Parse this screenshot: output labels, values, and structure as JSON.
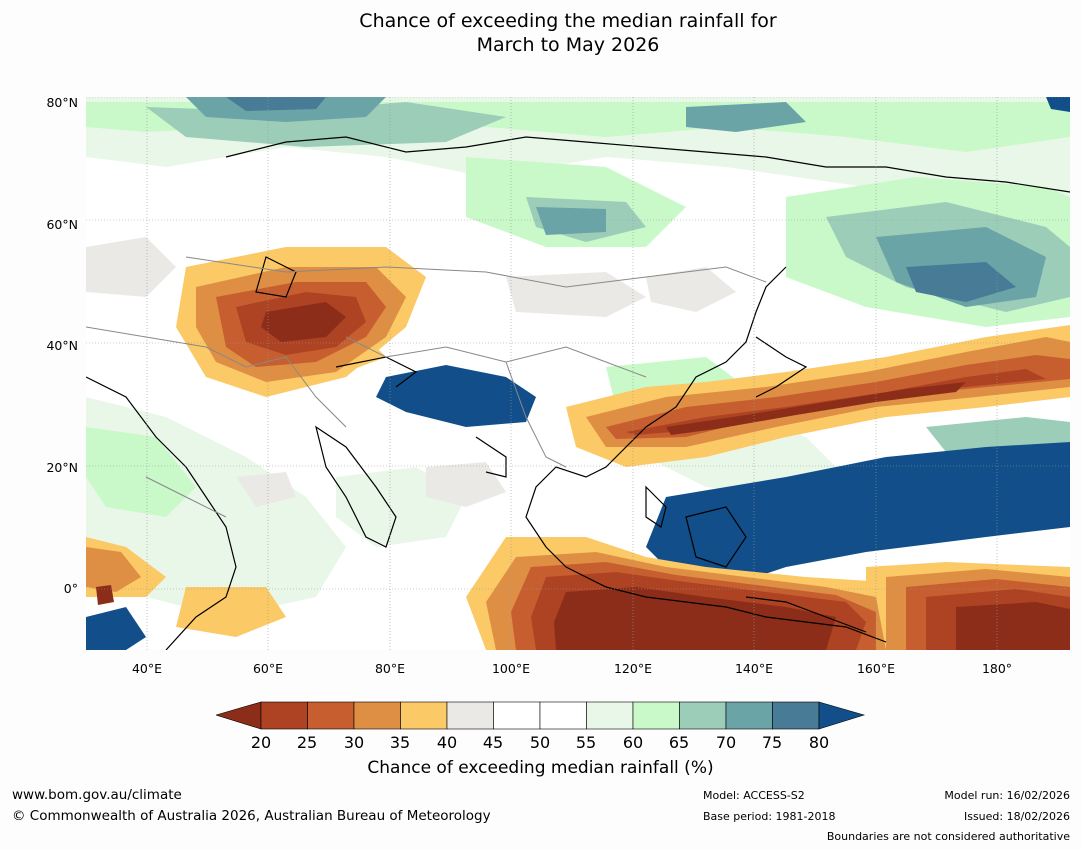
{
  "title_line1": "Chance of exceeding the median rainfall for",
  "title_line2": "March to May 2026",
  "map": {
    "latitudes": [
      "80°N",
      "60°N",
      "40°N",
      "20°N",
      "0°"
    ],
    "longitudes": [
      "40°E",
      "60°E",
      "80°E",
      "100°E",
      "120°E",
      "140°E",
      "160°E",
      "180°"
    ],
    "lat_values": [
      80,
      60,
      40,
      20,
      0
    ],
    "lon_values": [
      40,
      60,
      80,
      100,
      120,
      140,
      160,
      180
    ],
    "lon_range": [
      30,
      192
    ],
    "lat_range": [
      -10,
      80
    ],
    "colors": {
      "c20": "#8c2d1a",
      "c25": "#ad4322",
      "c30": "#c75e2f",
      "c35": "#df8f43",
      "c40": "#fbc965",
      "c45": "#ebe9e6",
      "c50": "#ffffff",
      "c55": "#ffffff",
      "c60": "#e9f7e9",
      "c65": "#c9f8c9",
      "c70": "#9bcdb9",
      "c75": "#6ba4a6",
      "c80": "#477b96",
      "c85": "#124f8a"
    }
  },
  "colorbar": {
    "ticks": [
      "20",
      "25",
      "30",
      "35",
      "40",
      "45",
      "50",
      "55",
      "60",
      "65",
      "70",
      "75",
      "80"
    ],
    "label": "Chance of exceeding median rainfall (%)"
  },
  "footer": {
    "website": "www.bom.gov.au/climate",
    "copyright": "© Commonwealth of Australia 2026, Australian Bureau of Meteorology",
    "model": "Model: ACCESS-S2",
    "base_period": "Base period: 1981-2018",
    "model_run": "Model run: 16/02/2026",
    "issued": "Issued: 18/02/2026",
    "disclaimer": "Boundaries are not considered authoritative"
  }
}
